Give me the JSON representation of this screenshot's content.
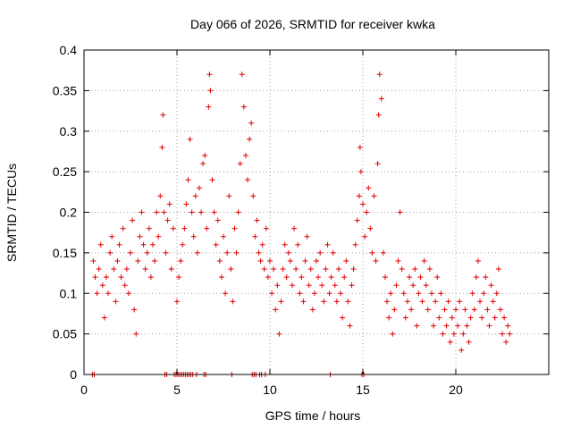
{
  "chart_data": {
    "type": "scatter",
    "title": "Day 066 of 2026, SRMTID for receiver kwka",
    "xlabel": "GPS time / hours",
    "ylabel": "SRMTID / TECUs",
    "xlim": [
      0,
      25
    ],
    "ylim": [
      0,
      0.4
    ],
    "xticks": [
      0,
      5,
      10,
      15,
      20
    ],
    "yticks": [
      0,
      0.05,
      0.1,
      0.15,
      0.2,
      0.25,
      0.3,
      0.35,
      0.4
    ],
    "xtick_labels": [
      "0",
      "5",
      "10",
      "15",
      "20"
    ],
    "ytick_labels": [
      "0",
      "0.05",
      "0.1",
      "0.15",
      "0.2",
      "0.25",
      "0.3",
      "0.35",
      "0.4"
    ],
    "grid": true,
    "marker": "+",
    "color": "#e00000",
    "series": [
      {
        "name": "SRMTID",
        "points": [
          [
            0.5,
            0.14
          ],
          [
            0.6,
            0.12
          ],
          [
            0.7,
            0.1
          ],
          [
            0.8,
            0.13
          ],
          [
            0.9,
            0.16
          ],
          [
            1.0,
            0.11
          ],
          [
            1.1,
            0.07
          ],
          [
            1.2,
            0.12
          ],
          [
            1.3,
            0.1
          ],
          [
            1.4,
            0.15
          ],
          [
            1.5,
            0.17
          ],
          [
            1.6,
            0.13
          ],
          [
            1.7,
            0.09
          ],
          [
            1.8,
            0.14
          ],
          [
            1.9,
            0.16
          ],
          [
            2.0,
            0.12
          ],
          [
            2.1,
            0.18
          ],
          [
            2.2,
            0.11
          ],
          [
            2.3,
            0.13
          ],
          [
            2.4,
            0.1
          ],
          [
            2.5,
            0.15
          ],
          [
            2.6,
            0.19
          ],
          [
            2.7,
            0.08
          ],
          [
            2.8,
            0.05
          ],
          [
            2.9,
            0.14
          ],
          [
            3.0,
            0.17
          ],
          [
            3.1,
            0.2
          ],
          [
            3.2,
            0.16
          ],
          [
            3.3,
            0.13
          ],
          [
            3.4,
            0.15
          ],
          [
            3.5,
            0.18
          ],
          [
            3.6,
            0.12
          ],
          [
            3.7,
            0.16
          ],
          [
            3.8,
            0.14
          ],
          [
            3.9,
            0.2
          ],
          [
            4.0,
            0.17
          ],
          [
            4.1,
            0.22
          ],
          [
            4.2,
            0.28
          ],
          [
            4.25,
            0.32
          ],
          [
            4.3,
            0.2
          ],
          [
            4.4,
            0.15
          ],
          [
            4.5,
            0.19
          ],
          [
            4.6,
            0.21
          ],
          [
            4.7,
            0.13
          ],
          [
            4.8,
            0.18
          ],
          [
            5.0,
            0.09
          ],
          [
            5.1,
            0.12
          ],
          [
            5.2,
            0.14
          ],
          [
            5.3,
            0.16
          ],
          [
            5.4,
            0.18
          ],
          [
            5.5,
            0.21
          ],
          [
            5.6,
            0.24
          ],
          [
            5.7,
            0.29
          ],
          [
            5.8,
            0.2
          ],
          [
            5.9,
            0.17
          ],
          [
            6.0,
            0.22
          ],
          [
            6.1,
            0.15
          ],
          [
            6.2,
            0.23
          ],
          [
            6.3,
            0.2
          ],
          [
            6.4,
            0.26
          ],
          [
            6.5,
            0.27
          ],
          [
            6.6,
            0.18
          ],
          [
            6.7,
            0.33
          ],
          [
            6.75,
            0.37
          ],
          [
            6.8,
            0.35
          ],
          [
            6.9,
            0.24
          ],
          [
            7.0,
            0.2
          ],
          [
            7.1,
            0.16
          ],
          [
            7.2,
            0.19
          ],
          [
            7.3,
            0.14
          ],
          [
            7.4,
            0.12
          ],
          [
            7.5,
            0.17
          ],
          [
            7.6,
            0.1
          ],
          [
            7.7,
            0.15
          ],
          [
            7.8,
            0.22
          ],
          [
            7.9,
            0.13
          ],
          [
            8.0,
            0.09
          ],
          [
            8.1,
            0.18
          ],
          [
            8.2,
            0.15
          ],
          [
            8.3,
            0.2
          ],
          [
            8.4,
            0.26
          ],
          [
            8.5,
            0.37
          ],
          [
            8.6,
            0.33
          ],
          [
            8.7,
            0.27
          ],
          [
            8.8,
            0.24
          ],
          [
            8.9,
            0.29
          ],
          [
            9.0,
            0.31
          ],
          [
            9.1,
            0.22
          ],
          [
            9.2,
            0.17
          ],
          [
            9.3,
            0.19
          ],
          [
            9.4,
            0.15
          ],
          [
            9.5,
            0.14
          ],
          [
            9.6,
            0.16
          ],
          [
            9.7,
            0.13
          ],
          [
            9.8,
            0.18
          ],
          [
            9.9,
            0.12
          ],
          [
            10.0,
            0.14
          ],
          [
            10.1,
            0.1
          ],
          [
            10.2,
            0.13
          ],
          [
            10.3,
            0.08
          ],
          [
            10.4,
            0.11
          ],
          [
            10.5,
            0.05
          ],
          [
            10.6,
            0.09
          ],
          [
            10.7,
            0.13
          ],
          [
            10.8,
            0.16
          ],
          [
            10.9,
            0.12
          ],
          [
            11.0,
            0.15
          ],
          [
            11.1,
            0.14
          ],
          [
            11.2,
            0.11
          ],
          [
            11.3,
            0.18
          ],
          [
            11.4,
            0.13
          ],
          [
            11.5,
            0.16
          ],
          [
            11.6,
            0.1
          ],
          [
            11.7,
            0.12
          ],
          [
            11.8,
            0.09
          ],
          [
            11.9,
            0.14
          ],
          [
            12.0,
            0.17
          ],
          [
            12.1,
            0.11
          ],
          [
            12.2,
            0.13
          ],
          [
            12.3,
            0.08
          ],
          [
            12.4,
            0.1
          ],
          [
            12.5,
            0.14
          ],
          [
            12.6,
            0.12
          ],
          [
            12.7,
            0.15
          ],
          [
            12.8,
            0.11
          ],
          [
            12.9,
            0.09
          ],
          [
            13.0,
            0.13
          ],
          [
            13.1,
            0.16
          ],
          [
            13.2,
            0.1
          ],
          [
            13.3,
            0.12
          ],
          [
            13.4,
            0.15
          ],
          [
            13.5,
            0.11
          ],
          [
            13.6,
            0.09
          ],
          [
            13.7,
            0.13
          ],
          [
            13.8,
            0.1
          ],
          [
            13.9,
            0.07
          ],
          [
            14.0,
            0.12
          ],
          [
            14.1,
            0.14
          ],
          [
            14.2,
            0.09
          ],
          [
            14.3,
            0.06
          ],
          [
            14.4,
            0.11
          ],
          [
            14.5,
            0.13
          ],
          [
            14.6,
            0.16
          ],
          [
            14.7,
            0.19
          ],
          [
            14.8,
            0.22
          ],
          [
            14.85,
            0.28
          ],
          [
            14.9,
            0.25
          ],
          [
            15.0,
            0.21
          ],
          [
            15.1,
            0.17
          ],
          [
            15.2,
            0.2
          ],
          [
            15.3,
            0.23
          ],
          [
            15.4,
            0.18
          ],
          [
            15.5,
            0.15
          ],
          [
            15.6,
            0.22
          ],
          [
            15.7,
            0.14
          ],
          [
            15.8,
            0.26
          ],
          [
            15.85,
            0.32
          ],
          [
            15.9,
            0.37
          ],
          [
            16.0,
            0.34
          ],
          [
            16.1,
            0.15
          ],
          [
            16.2,
            0.12
          ],
          [
            16.3,
            0.09
          ],
          [
            16.4,
            0.07
          ],
          [
            16.5,
            0.1
          ],
          [
            16.6,
            0.05
          ],
          [
            16.7,
            0.08
          ],
          [
            16.8,
            0.11
          ],
          [
            16.9,
            0.14
          ],
          [
            17.0,
            0.2
          ],
          [
            17.1,
            0.13
          ],
          [
            17.2,
            0.1
          ],
          [
            17.3,
            0.07
          ],
          [
            17.4,
            0.09
          ],
          [
            17.5,
            0.12
          ],
          [
            17.6,
            0.08
          ],
          [
            17.7,
            0.11
          ],
          [
            17.8,
            0.13
          ],
          [
            17.9,
            0.06
          ],
          [
            18.0,
            0.1
          ],
          [
            18.1,
            0.12
          ],
          [
            18.2,
            0.09
          ],
          [
            18.3,
            0.14
          ],
          [
            18.4,
            0.11
          ],
          [
            18.5,
            0.08
          ],
          [
            18.6,
            0.13
          ],
          [
            18.7,
            0.1
          ],
          [
            18.8,
            0.06
          ],
          [
            18.9,
            0.09
          ],
          [
            19.0,
            0.12
          ],
          [
            19.1,
            0.07
          ],
          [
            19.2,
            0.1
          ],
          [
            19.3,
            0.05
          ],
          [
            19.4,
            0.08
          ],
          [
            19.5,
            0.06
          ],
          [
            19.6,
            0.09
          ],
          [
            19.7,
            0.04
          ],
          [
            19.8,
            0.07
          ],
          [
            19.9,
            0.05
          ],
          [
            20.0,
            0.08
          ],
          [
            20.1,
            0.06
          ],
          [
            20.2,
            0.09
          ],
          [
            20.3,
            0.03
          ],
          [
            20.4,
            0.05
          ],
          [
            20.5,
            0.08
          ],
          [
            20.6,
            0.06
          ],
          [
            20.7,
            0.04
          ],
          [
            20.8,
            0.07
          ],
          [
            20.9,
            0.1
          ],
          [
            21.0,
            0.08
          ],
          [
            21.1,
            0.12
          ],
          [
            21.2,
            0.14
          ],
          [
            21.3,
            0.09
          ],
          [
            21.4,
            0.07
          ],
          [
            21.5,
            0.1
          ],
          [
            21.6,
            0.12
          ],
          [
            21.7,
            0.08
          ],
          [
            21.8,
            0.06
          ],
          [
            21.9,
            0.11
          ],
          [
            22.0,
            0.09
          ],
          [
            22.1,
            0.07
          ],
          [
            22.2,
            0.1
          ],
          [
            22.3,
            0.13
          ],
          [
            22.4,
            0.08
          ],
          [
            22.5,
            0.05
          ],
          [
            22.6,
            0.07
          ],
          [
            22.7,
            0.04
          ],
          [
            22.8,
            0.06
          ],
          [
            22.9,
            0.05
          ],
          [
            0.45,
            0.0
          ],
          [
            0.55,
            0.0
          ],
          [
            4.35,
            0.0
          ],
          [
            4.45,
            0.0
          ],
          [
            4.85,
            0.0
          ],
          [
            4.95,
            0.0
          ],
          [
            5.05,
            0.0
          ],
          [
            5.15,
            0.0
          ],
          [
            5.25,
            0.0
          ],
          [
            5.35,
            0.0
          ],
          [
            5.45,
            0.0
          ],
          [
            5.55,
            0.0
          ],
          [
            5.65,
            0.0
          ],
          [
            5.75,
            0.0
          ],
          [
            5.85,
            0.0
          ],
          [
            6.05,
            0.0
          ],
          [
            6.45,
            0.0
          ],
          [
            6.55,
            0.0
          ],
          [
            7.95,
            0.0
          ],
          [
            9.05,
            0.0
          ],
          [
            9.15,
            0.0
          ],
          [
            9.25,
            0.0
          ],
          [
            9.45,
            0.0
          ],
          [
            9.55,
            0.0
          ],
          [
            9.75,
            0.0
          ],
          [
            13.25,
            0.0
          ],
          [
            14.95,
            0.0
          ],
          [
            15.05,
            0.0
          ]
        ]
      }
    ]
  }
}
